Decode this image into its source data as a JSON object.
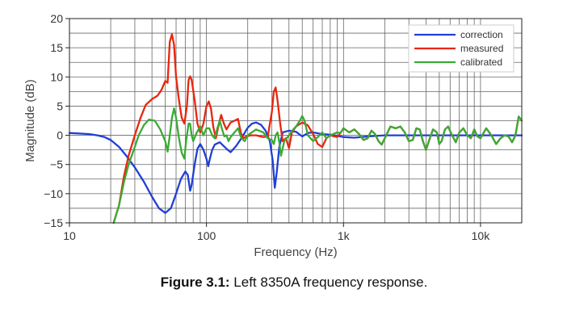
{
  "chart_data": {
    "type": "line",
    "xscale": "log",
    "xlim": [
      10,
      20000
    ],
    "ylim": [
      -15,
      20
    ],
    "grid": true,
    "xlabel": "Frequency (Hz)",
    "ylabel": "Magnitude (dB)",
    "x_ticks": [
      10,
      100,
      1000,
      10000
    ],
    "x_tick_labels": [
      "10",
      "100",
      "1k",
      "10k"
    ],
    "y_ticks": [
      -15,
      -10,
      -5,
      0,
      5,
      10,
      15,
      20
    ],
    "y_tick_labels": [
      "−15",
      "−10",
      "−5",
      "0",
      "5",
      "10",
      "15",
      "20"
    ],
    "legend_position": "top-right",
    "series": [
      {
        "name": "correction",
        "color": "#1f3fd6",
        "points": [
          [
            10,
            0.4
          ],
          [
            12,
            0.3
          ],
          [
            14,
            0.2
          ],
          [
            16,
            0
          ],
          [
            18,
            -0.3
          ],
          [
            20,
            -0.8
          ],
          [
            23,
            -2
          ],
          [
            26,
            -3.5
          ],
          [
            30,
            -5.5
          ],
          [
            35,
            -8
          ],
          [
            40,
            -10.5
          ],
          [
            45,
            -12.5
          ],
          [
            50,
            -13.3
          ],
          [
            55,
            -12.5
          ],
          [
            60,
            -10
          ],
          [
            65,
            -7.5
          ],
          [
            70,
            -6.2
          ],
          [
            73,
            -6.8
          ],
          [
            76,
            -9.5
          ],
          [
            78,
            -8.5
          ],
          [
            82,
            -5
          ],
          [
            86,
            -2.3
          ],
          [
            90,
            -1.5
          ],
          [
            95,
            -2.5
          ],
          [
            100,
            -4
          ],
          [
            103,
            -5.3
          ],
          [
            106,
            -4
          ],
          [
            110,
            -2.5
          ],
          [
            115,
            -1.6
          ],
          [
            125,
            -1.2
          ],
          [
            140,
            -2.3
          ],
          [
            150,
            -2.9
          ],
          [
            165,
            -1.8
          ],
          [
            180,
            -0.5
          ],
          [
            200,
            1.3
          ],
          [
            215,
            2
          ],
          [
            230,
            2.2
          ],
          [
            250,
            1.8
          ],
          [
            270,
            0.8
          ],
          [
            290,
            -1
          ],
          [
            305,
            -4.5
          ],
          [
            315,
            -9
          ],
          [
            325,
            -6.5
          ],
          [
            340,
            -2
          ],
          [
            360,
            0.5
          ],
          [
            400,
            0.8
          ],
          [
            450,
            0.6
          ],
          [
            500,
            -0.2
          ],
          [
            550,
            0.4
          ],
          [
            600,
            0.5
          ],
          [
            700,
            0.2
          ],
          [
            800,
            0.1
          ],
          [
            1000,
            -0.3
          ],
          [
            1200,
            -0.4
          ],
          [
            1500,
            -0.2
          ],
          [
            2000,
            0
          ],
          [
            3000,
            0
          ],
          [
            5000,
            0
          ],
          [
            10000,
            0
          ],
          [
            20000,
            0
          ]
        ]
      },
      {
        "name": "measured",
        "color": "#e8260d",
        "points": [
          [
            21,
            -15
          ],
          [
            23,
            -12
          ],
          [
            25,
            -7
          ],
          [
            27,
            -3.5
          ],
          [
            30,
            0
          ],
          [
            33,
            3
          ],
          [
            36,
            5.2
          ],
          [
            40,
            6.2
          ],
          [
            44,
            6.8
          ],
          [
            47,
            7.8
          ],
          [
            50,
            9.3
          ],
          [
            52,
            9
          ],
          [
            54,
            16
          ],
          [
            56,
            17.3
          ],
          [
            58,
            15.5
          ],
          [
            60,
            10
          ],
          [
            63,
            6
          ],
          [
            66,
            3
          ],
          [
            69,
            2
          ],
          [
            72,
            5
          ],
          [
            74,
            9.5
          ],
          [
            76,
            10.1
          ],
          [
            78,
            9.5
          ],
          [
            82,
            6
          ],
          [
            86,
            2
          ],
          [
            90,
            0.5
          ],
          [
            95,
            2
          ],
          [
            100,
            5
          ],
          [
            104,
            5.8
          ],
          [
            108,
            4.5
          ],
          [
            112,
            1.5
          ],
          [
            117,
            -0.5
          ],
          [
            122,
            1.5
          ],
          [
            128,
            3.5
          ],
          [
            134,
            2
          ],
          [
            140,
            1
          ],
          [
            150,
            2.2
          ],
          [
            160,
            2.5
          ],
          [
            170,
            2.8
          ],
          [
            178,
            0.5
          ],
          [
            185,
            -0.5
          ],
          [
            195,
            -0.2
          ],
          [
            210,
            0
          ],
          [
            230,
            0
          ],
          [
            260,
            -0.3
          ],
          [
            280,
            -0.2
          ],
          [
            300,
            4
          ],
          [
            310,
            7.5
          ],
          [
            320,
            8.2
          ],
          [
            330,
            6
          ],
          [
            345,
            2
          ],
          [
            360,
            -1
          ],
          [
            380,
            -0.5
          ],
          [
            400,
            -2.2
          ],
          [
            420,
            0.5
          ],
          [
            450,
            1.5
          ],
          [
            500,
            2.2
          ],
          [
            550,
            1.7
          ],
          [
            600,
            0.2
          ],
          [
            650,
            -1.5
          ],
          [
            700,
            -2
          ],
          [
            750,
            -0.5
          ],
          [
            800,
            0
          ],
          [
            900,
            -0.3
          ],
          [
            950,
            0.4
          ],
          [
            1000,
            1.2
          ],
          [
            1100,
            0.5
          ],
          [
            1200,
            1
          ],
          [
            1300,
            0.2
          ],
          [
            1400,
            -0.8
          ],
          [
            1500,
            -0.5
          ],
          [
            1600,
            0.8
          ],
          [
            1700,
            0.2
          ],
          [
            1800,
            -1
          ],
          [
            1900,
            -1.6
          ],
          [
            2000,
            -0.5
          ],
          [
            2200,
            1.5
          ],
          [
            2400,
            1.2
          ],
          [
            2600,
            1.5
          ],
          [
            2800,
            0.5
          ],
          [
            3000,
            -1
          ],
          [
            3200,
            -0.8
          ],
          [
            3400,
            1.2
          ],
          [
            3600,
            1
          ],
          [
            3800,
            -1
          ],
          [
            4000,
            -2.5
          ],
          [
            4200,
            -1
          ],
          [
            4500,
            1
          ],
          [
            4800,
            0.5
          ],
          [
            5000,
            -1.5
          ],
          [
            5200,
            -1
          ],
          [
            5500,
            1
          ],
          [
            5800,
            1.5
          ],
          [
            6200,
            0
          ],
          [
            6600,
            -1.2
          ],
          [
            7000,
            0.5
          ],
          [
            7500,
            1.2
          ],
          [
            8000,
            0
          ],
          [
            8500,
            -0.5
          ],
          [
            9000,
            1
          ],
          [
            9500,
            -0.2
          ],
          [
            10000,
            -0.5
          ],
          [
            11000,
            1.2
          ],
          [
            12000,
            0
          ],
          [
            13000,
            -1.5
          ],
          [
            14000,
            -0.5
          ],
          [
            15000,
            0
          ],
          [
            16000,
            -0.2
          ],
          [
            17000,
            -1.2
          ],
          [
            18000,
            0
          ],
          [
            19000,
            3.2
          ],
          [
            20000,
            2.5
          ]
        ]
      },
      {
        "name": "calibrated",
        "color": "#3aaa35",
        "points": [
          [
            21,
            -15
          ],
          [
            23,
            -12
          ],
          [
            25,
            -8
          ],
          [
            27,
            -5
          ],
          [
            30,
            -2
          ],
          [
            32,
            0
          ],
          [
            35,
            1.8
          ],
          [
            38,
            2.7
          ],
          [
            42,
            2.5
          ],
          [
            46,
            1
          ],
          [
            50,
            -1
          ],
          [
            52,
            -2.8
          ],
          [
            54,
            0
          ],
          [
            56,
            3
          ],
          [
            58,
            4.6
          ],
          [
            60,
            3
          ],
          [
            63,
            -0.5
          ],
          [
            66,
            -3
          ],
          [
            69,
            -4
          ],
          [
            71,
            -1
          ],
          [
            74,
            2
          ],
          [
            76,
            2
          ],
          [
            78,
            0
          ],
          [
            80,
            -1
          ],
          [
            85,
            0.5
          ],
          [
            90,
            1.5
          ],
          [
            95,
            0
          ],
          [
            100,
            1.2
          ],
          [
            105,
            1.2
          ],
          [
            110,
            0
          ],
          [
            115,
            -0.5
          ],
          [
            120,
            1.2
          ],
          [
            125,
            2.5
          ],
          [
            130,
            1
          ],
          [
            135,
            -0.2
          ],
          [
            140,
            0
          ],
          [
            145,
            -1
          ],
          [
            150,
            -0.3
          ],
          [
            160,
            0.5
          ],
          [
            170,
            1.2
          ],
          [
            180,
            -0.5
          ],
          [
            190,
            -1
          ],
          [
            200,
            0
          ],
          [
            230,
            1
          ],
          [
            260,
            0.5
          ],
          [
            280,
            -0.5
          ],
          [
            300,
            -0.8
          ],
          [
            310,
            -1.5
          ],
          [
            320,
            0
          ],
          [
            330,
            0.5
          ],
          [
            340,
            -1.2
          ],
          [
            350,
            -3.5
          ],
          [
            370,
            -1
          ],
          [
            400,
            0
          ],
          [
            430,
            1
          ],
          [
            450,
            1.5
          ],
          [
            480,
            2.5
          ],
          [
            500,
            3.3
          ],
          [
            520,
            2.5
          ],
          [
            550,
            0
          ],
          [
            600,
            -1
          ],
          [
            650,
            -0.3
          ],
          [
            700,
            0.5
          ],
          [
            750,
            -0.5
          ],
          [
            800,
            0
          ],
          [
            900,
            0.5
          ],
          [
            950,
            0.4
          ],
          [
            1000,
            1.2
          ],
          [
            1100,
            0.5
          ],
          [
            1200,
            1
          ],
          [
            1300,
            0.2
          ],
          [
            1400,
            -0.8
          ],
          [
            1500,
            -0.5
          ],
          [
            1600,
            0.8
          ],
          [
            1700,
            0.2
          ],
          [
            1800,
            -1
          ],
          [
            1900,
            -1.6
          ],
          [
            2000,
            -0.5
          ],
          [
            2200,
            1.5
          ],
          [
            2400,
            1.2
          ],
          [
            2600,
            1.5
          ],
          [
            2800,
            0.5
          ],
          [
            3000,
            -1
          ],
          [
            3200,
            -0.8
          ],
          [
            3400,
            1.2
          ],
          [
            3600,
            1
          ],
          [
            3800,
            -1
          ],
          [
            4000,
            -2.5
          ],
          [
            4200,
            -1
          ],
          [
            4500,
            1
          ],
          [
            4800,
            0.5
          ],
          [
            5000,
            -1.5
          ],
          [
            5200,
            -1
          ],
          [
            5500,
            1
          ],
          [
            5800,
            1.5
          ],
          [
            6200,
            0
          ],
          [
            6600,
            -1.2
          ],
          [
            7000,
            0.5
          ],
          [
            7500,
            1.2
          ],
          [
            8000,
            0
          ],
          [
            8500,
            -0.5
          ],
          [
            9000,
            1
          ],
          [
            9500,
            -0.2
          ],
          [
            10000,
            -0.5
          ],
          [
            11000,
            1.2
          ],
          [
            12000,
            0
          ],
          [
            13000,
            -1.5
          ],
          [
            14000,
            -0.5
          ],
          [
            15000,
            0
          ],
          [
            16000,
            -0.2
          ],
          [
            17000,
            -1.2
          ],
          [
            18000,
            0
          ],
          [
            19000,
            3.2
          ],
          [
            20000,
            2.5
          ]
        ]
      }
    ]
  },
  "caption": {
    "label": "Figure 3.1:",
    "text": " Left 8350A frequency response."
  }
}
